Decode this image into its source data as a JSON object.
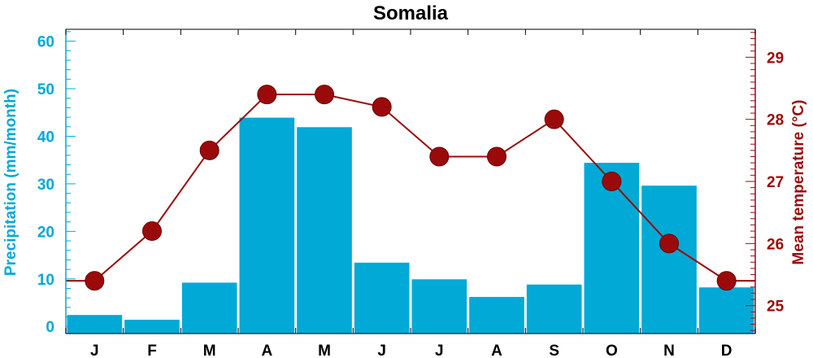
{
  "chart_data": {
    "type": "bar",
    "title": "Somalia",
    "categories": [
      "J",
      "F",
      "M",
      "A",
      "M",
      "J",
      "J",
      "A",
      "S",
      "O",
      "N",
      "D"
    ],
    "series": [
      {
        "name": "Precipitation",
        "type": "bar",
        "axis": "left",
        "color": "#00a9d6",
        "values": [
          2.5,
          1.5,
          9.3,
          44.0,
          42.0,
          13.5,
          10.0,
          6.3,
          8.9,
          34.5,
          29.7,
          8.3
        ]
      },
      {
        "name": "Mean temperature",
        "type": "line",
        "axis": "right",
        "color": "#9b0a0a",
        "values": [
          25.4,
          26.2,
          27.5,
          28.4,
          28.4,
          28.2,
          27.4,
          27.4,
          28.0,
          27.0,
          26.0,
          25.4
        ]
      }
    ],
    "ylabel": "Precipitation (mm/month)",
    "y2label": "Mean temperature (°C)",
    "ylim": [
      -1.5,
      62.5
    ],
    "y2lim": [
      24.55,
      29.45
    ],
    "yticks": [
      "0",
      "10",
      "20",
      "30",
      "40",
      "50",
      "60"
    ],
    "y2ticks": [
      "25",
      "26",
      "27",
      "28",
      "29"
    ],
    "grid": false,
    "colors": {
      "precipitation": "#00a9d6",
      "temperature": "#9b0a0a",
      "axes": "#000000"
    }
  }
}
